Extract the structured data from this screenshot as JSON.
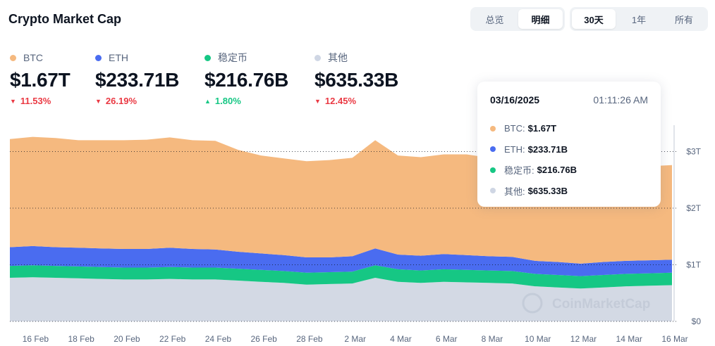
{
  "header": {
    "title": "Crypto Market Cap"
  },
  "view_toggle": [
    {
      "label": "总览",
      "active": false
    },
    {
      "label": "明细",
      "active": true
    }
  ],
  "range_toggle": [
    {
      "label": "30天",
      "active": true
    },
    {
      "label": "1年",
      "active": false
    },
    {
      "label": "所有",
      "active": false
    }
  ],
  "stats": [
    {
      "label": "BTC",
      "value": "$1.67T",
      "change": "11.53%",
      "direction": "down",
      "color": "#f5b97f"
    },
    {
      "label": "ETH",
      "value": "$233.71B",
      "change": "26.19%",
      "direction": "down",
      "color": "#4a6cf0"
    },
    {
      "label": "稳定币",
      "value": "$216.76B",
      "change": "1.80%",
      "direction": "up",
      "color": "#16c784"
    },
    {
      "label": "其他",
      "value": "$635.33B",
      "change": "12.45%",
      "direction": "down",
      "color": "#cfd6e4"
    }
  ],
  "tooltip": {
    "date": "03/16/2025",
    "time": "01:11:26 AM",
    "rows": [
      {
        "label": "BTC:",
        "value": "$1.67T",
        "color": "#f5b97f"
      },
      {
        "label": "ETH:",
        "value": "$233.71B",
        "color": "#4a6cf0"
      },
      {
        "label": "稳定币:",
        "value": "$216.76B",
        "color": "#16c784"
      },
      {
        "label": "其他:",
        "value": "$635.33B",
        "color": "#cfd6e4"
      }
    ]
  },
  "watermark": "CoinMarketCap",
  "chart_data": {
    "type": "area",
    "stacked": true,
    "x": [
      "15 Feb",
      "16 Feb",
      "17 Feb",
      "18 Feb",
      "19 Feb",
      "20 Feb",
      "21 Feb",
      "22 Feb",
      "23 Feb",
      "24 Feb",
      "25 Feb",
      "26 Feb",
      "27 Feb",
      "28 Feb",
      "1 Mar",
      "2 Mar",
      "3 Mar",
      "4 Mar",
      "5 Mar",
      "6 Mar",
      "7 Mar",
      "8 Mar",
      "9 Mar",
      "10 Mar",
      "11 Mar",
      "12 Mar",
      "13 Mar",
      "14 Mar",
      "15 Mar",
      "16 Mar"
    ],
    "x_tick_labels": [
      "16 Feb",
      "18 Feb",
      "20 Feb",
      "22 Feb",
      "24 Feb",
      "26 Feb",
      "28 Feb",
      "2 Mar",
      "4 Mar",
      "6 Mar",
      "8 Mar",
      "10 Mar",
      "12 Mar",
      "14 Mar",
      "16 Mar"
    ],
    "y_tick_labels": [
      "$0",
      "$1T",
      "$2T",
      "$3T"
    ],
    "ylim": [
      0,
      3.5
    ],
    "y_unit": "T",
    "grid": true,
    "series": [
      {
        "name": "其他",
        "color": "#d3d9e4",
        "values": [
          0.77,
          0.78,
          0.77,
          0.76,
          0.75,
          0.74,
          0.74,
          0.75,
          0.74,
          0.74,
          0.72,
          0.7,
          0.68,
          0.65,
          0.66,
          0.67,
          0.77,
          0.7,
          0.68,
          0.7,
          0.69,
          0.68,
          0.67,
          0.62,
          0.6,
          0.58,
          0.6,
          0.62,
          0.63,
          0.64
        ]
      },
      {
        "name": "稳定币",
        "color": "#16c784",
        "values": [
          0.21,
          0.21,
          0.21,
          0.21,
          0.21,
          0.21,
          0.21,
          0.21,
          0.21,
          0.21,
          0.21,
          0.21,
          0.21,
          0.21,
          0.21,
          0.21,
          0.22,
          0.22,
          0.22,
          0.22,
          0.22,
          0.22,
          0.22,
          0.22,
          0.22,
          0.22,
          0.22,
          0.22,
          0.22,
          0.22
        ]
      },
      {
        "name": "ETH",
        "color": "#4a6cf0",
        "values": [
          0.33,
          0.34,
          0.33,
          0.33,
          0.33,
          0.33,
          0.33,
          0.34,
          0.33,
          0.32,
          0.3,
          0.29,
          0.28,
          0.27,
          0.26,
          0.27,
          0.3,
          0.26,
          0.26,
          0.27,
          0.26,
          0.25,
          0.25,
          0.23,
          0.23,
          0.22,
          0.23,
          0.23,
          0.23,
          0.23
        ]
      },
      {
        "name": "BTC",
        "color": "#f5b97f",
        "values": [
          1.91,
          1.93,
          1.93,
          1.9,
          1.91,
          1.92,
          1.93,
          1.95,
          1.92,
          1.92,
          1.8,
          1.73,
          1.71,
          1.7,
          1.72,
          1.74,
          1.91,
          1.75,
          1.74,
          1.76,
          1.78,
          1.74,
          1.67,
          1.6,
          1.62,
          1.62,
          1.65,
          1.66,
          1.66,
          1.67
        ]
      }
    ]
  }
}
